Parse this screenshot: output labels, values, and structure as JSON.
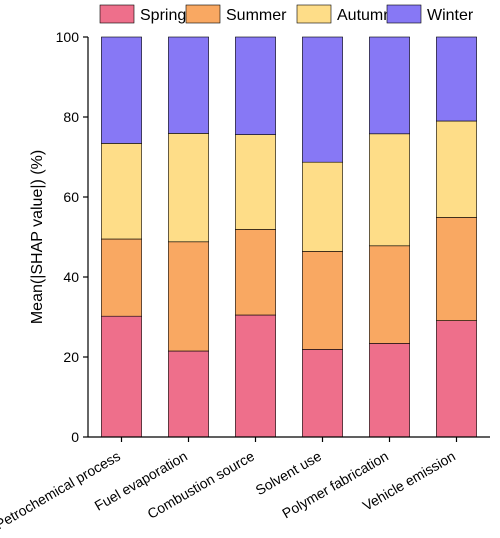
{
  "chart_data": {
    "type": "stacked_bar",
    "y_label": "Mean(|SHAP value|) (%)",
    "categories": [
      "Petrochemical process",
      "Fuel evaporation",
      "Combustion source",
      "Solvent use",
      "Polymer fabrication",
      "Vehicle emission"
    ],
    "series": [
      {
        "name": "Spring",
        "color": "#ee6f8b",
        "values": [
          30.2,
          21.5,
          30.5,
          21.9,
          23.4,
          29.1
        ]
      },
      {
        "name": "Summer",
        "color": "#f9a862",
        "values": [
          19.3,
          27.3,
          21.4,
          24.5,
          24.4,
          25.8
        ]
      },
      {
        "name": "Autumn",
        "color": "#fedd88",
        "values": [
          23.9,
          27.1,
          23.7,
          22.3,
          28.0,
          24.1
        ]
      },
      {
        "name": "Winter",
        "color": "#8778f5",
        "values": [
          26.6,
          24.1,
          24.4,
          31.3,
          24.2,
          21.0
        ]
      }
    ],
    "ylim": [
      0,
      100
    ],
    "yticks": [
      0,
      20,
      40,
      60,
      80,
      100
    ]
  }
}
